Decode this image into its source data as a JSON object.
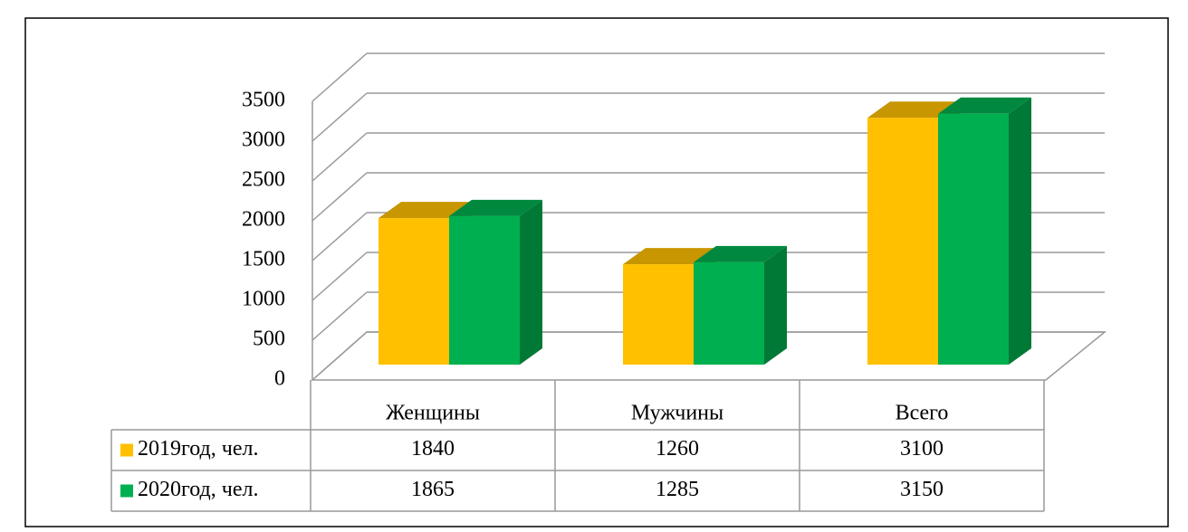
{
  "chart_data": {
    "type": "bar3d",
    "categories": [
      "Женщины",
      "Мужчины",
      "Всего"
    ],
    "series": [
      {
        "name": "2019год, чел.",
        "color": "#ffc000",
        "values": [
          1840,
          1260,
          3100
        ]
      },
      {
        "name": "2020год, чел.",
        "color": "#00b050",
        "values": [
          1865,
          1285,
          3150
        ]
      }
    ],
    "ylim": [
      0,
      3500
    ],
    "yticks": [
      0,
      500,
      1000,
      1500,
      2000,
      2500,
      3000,
      3500
    ],
    "grid": true,
    "legend": "table"
  }
}
